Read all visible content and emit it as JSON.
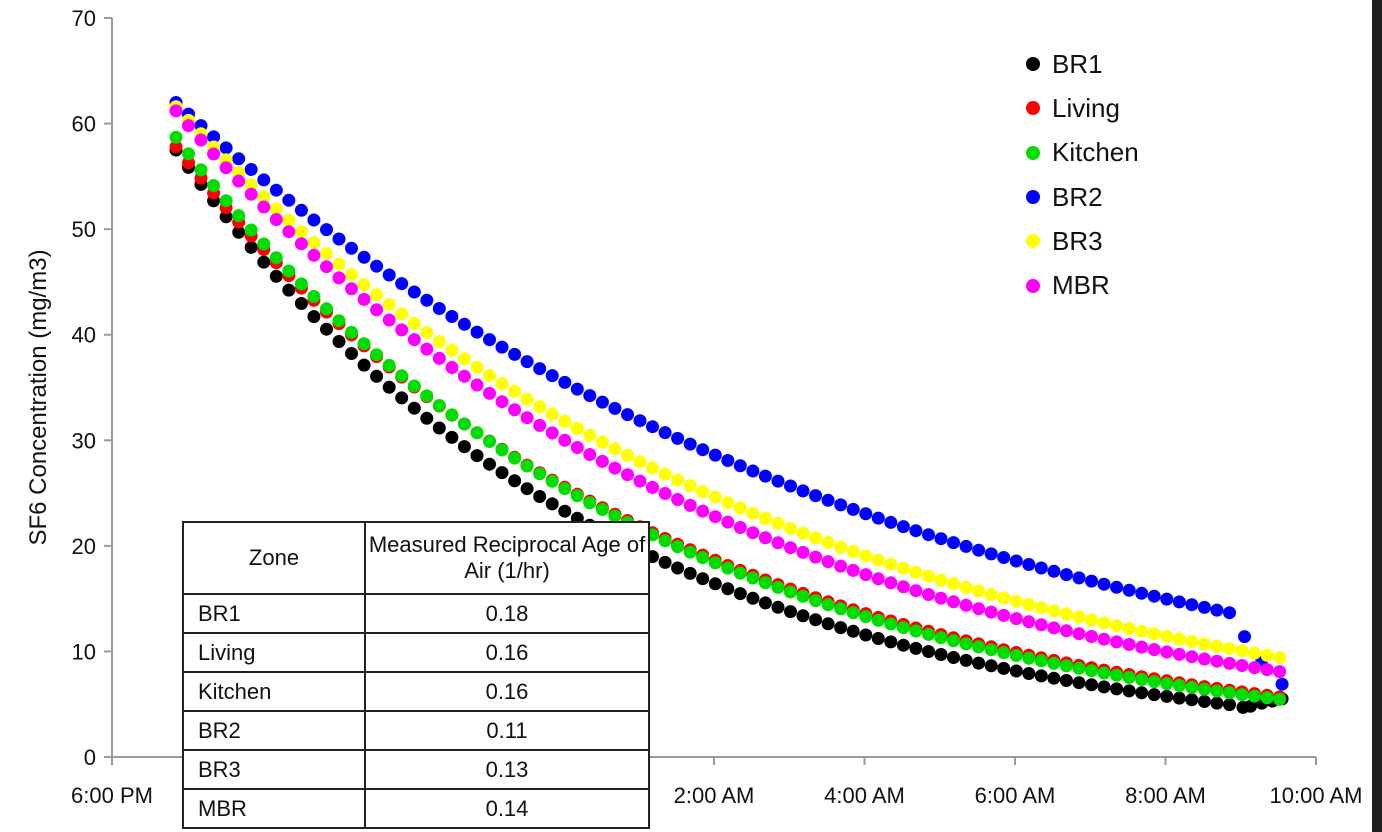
{
  "chart_data": {
    "type": "scatter",
    "ylabel": "SF6 Concentration (mg/m3)",
    "xlabel": "",
    "ylim": [
      0,
      70
    ],
    "yticks": [
      0,
      10,
      20,
      30,
      40,
      50,
      60,
      70
    ],
    "xlim": [
      18,
      34
    ],
    "xticks": [
      {
        "x": 18,
        "label": "6:00 PM"
      },
      {
        "x": 20,
        "label": ""
      },
      {
        "x": 22,
        "label": ""
      },
      {
        "x": 24,
        "label": ""
      },
      {
        "x": 26,
        "label": "2:00 AM"
      },
      {
        "x": 28,
        "label": "4:00 AM"
      },
      {
        "x": 30,
        "label": "6:00 AM"
      },
      {
        "x": 32,
        "label": "8:00 AM"
      },
      {
        "x": 34,
        "label": "10:00 AM"
      }
    ],
    "x_unit": "hour of day (24 = midnight)",
    "grid": false,
    "legend_position": "top-right",
    "series": [
      {
        "name": "BR1",
        "color": "#000000",
        "start": [
          18.85,
          57.5
        ],
        "end": [
          33.55,
          5.5
        ],
        "endNote": "min ~4.8 near 9:10 AM",
        "k": 0.175,
        "end_x": 32.93,
        "end_tail": [
          [
            33.03,
            4.7
          ],
          [
            33.13,
            4.8
          ],
          [
            33.28,
            5.1
          ],
          [
            33.42,
            5.3
          ],
          [
            33.55,
            5.5
          ]
        ]
      },
      {
        "name": "Living",
        "color": "#ff0000",
        "start": [
          18.85,
          57.8
        ],
        "k": 0.158,
        "end_x": 33.55
      },
      {
        "name": "Kitchen",
        "color": "#00dd00",
        "start": [
          18.85,
          58.7
        ],
        "k": 0.162,
        "end_x": 33.55
      },
      {
        "name": "BR2",
        "color": "#0000ff",
        "start": [
          18.85,
          62.0
        ],
        "k": 0.108,
        "end_x": 32.95,
        "end_tail": [
          [
            33.05,
            11.4
          ],
          [
            33.28,
            9.2
          ],
          [
            33.55,
            6.9
          ]
        ]
      },
      {
        "name": "BR3",
        "color": "#ffff00",
        "start": [
          18.85,
          61.6
        ],
        "k": 0.128,
        "end_x": 33.55
      },
      {
        "name": "MBR",
        "color": "#ff00ff",
        "start": [
          18.85,
          61.2
        ],
        "k": 0.138,
        "end_x": 33.55
      }
    ]
  },
  "table": {
    "headers": [
      "Zone",
      "Measured Reciprocal Age of Air (1/hr)"
    ],
    "rows": [
      {
        "zone": "BR1",
        "rate": "0.18"
      },
      {
        "zone": "Living",
        "rate": "0.16"
      },
      {
        "zone": "Kitchen",
        "rate": "0.16"
      },
      {
        "zone": "BR2",
        "rate": "0.11"
      },
      {
        "zone": "BR3",
        "rate": "0.13"
      },
      {
        "zone": "MBR",
        "rate": "0.14"
      }
    ]
  }
}
